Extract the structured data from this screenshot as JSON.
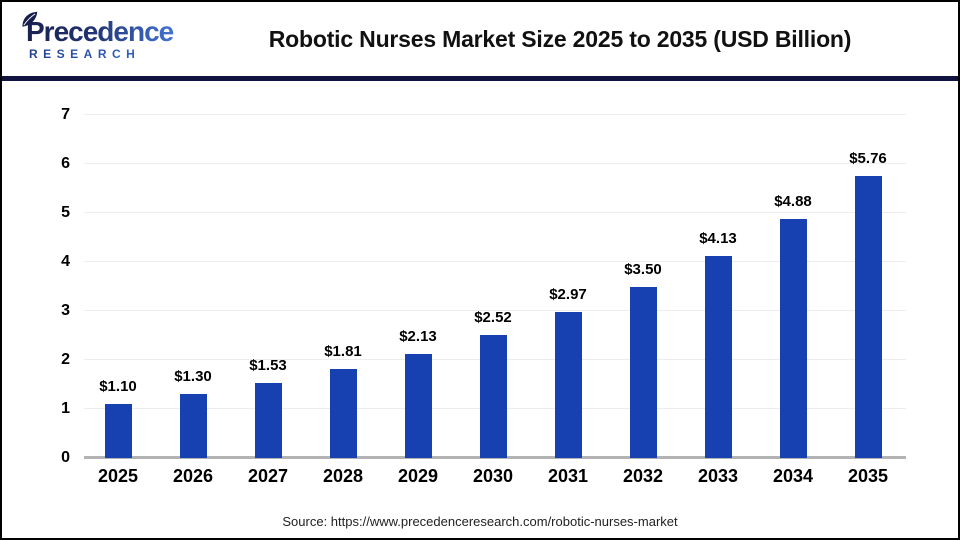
{
  "header": {
    "logo": {
      "name": "Precedence",
      "subname": "RESEARCH"
    },
    "title": "Robotic Nurses Market Size 2025 to 2035 (USD Billion)"
  },
  "chart_data": {
    "type": "bar",
    "title": "Robotic Nurses Market Size 2025 to 2035 (USD Billion)",
    "categories": [
      "2025",
      "2026",
      "2027",
      "2028",
      "2029",
      "2030",
      "2031",
      "2032",
      "2033",
      "2034",
      "2035"
    ],
    "values": [
      1.1,
      1.3,
      1.53,
      1.81,
      2.13,
      2.52,
      2.97,
      3.5,
      4.13,
      4.88,
      5.76
    ],
    "value_labels": [
      "$1.10",
      "$1.30",
      "$1.53",
      "$1.81",
      "$2.13",
      "$2.52",
      "$2.97",
      "$3.50",
      "$4.13",
      "$4.88",
      "$5.76"
    ],
    "unit": "USD Billion",
    "xlabel": "",
    "ylabel": "",
    "ylim": [
      0,
      7
    ],
    "yticks": [
      0,
      1,
      2,
      3,
      4,
      5,
      6,
      7
    ],
    "grid": true,
    "legend": false,
    "bar_color": "#1741b0"
  },
  "footer": {
    "source": "Source: https://www.precedenceresearch.com/robotic-nurses-market"
  },
  "colors": {
    "bar": "#1741b0",
    "header_divider": "#10123f",
    "gridline": "#ededed",
    "axis_line": "#b3b3b3",
    "title_text": "#111111",
    "logo_navy": "#19224f",
    "logo_blue": "#4f87dd"
  }
}
